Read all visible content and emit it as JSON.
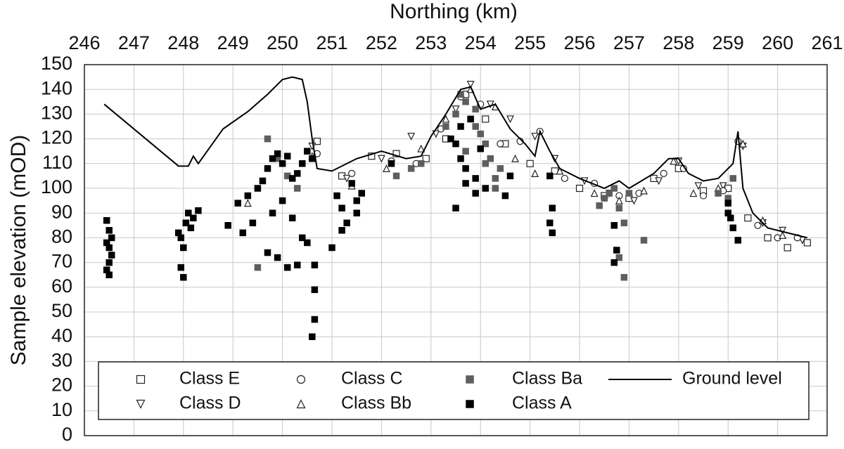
{
  "chart_data": {
    "type": "scatter",
    "x_label": "Northing (km)",
    "y_label": "Sample elevation (mOD)",
    "xlim": [
      246,
      261
    ],
    "xticks": [
      246,
      247,
      248,
      249,
      250,
      251,
      252,
      253,
      254,
      255,
      256,
      257,
      258,
      259,
      260,
      261
    ],
    "ylim": [
      0,
      150
    ],
    "yticks": [
      0,
      10,
      20,
      30,
      40,
      50,
      60,
      70,
      80,
      90,
      100,
      110,
      120,
      130,
      140,
      150
    ],
    "grid": true,
    "legend": "bottom",
    "series": [
      {
        "name": "Class E",
        "color": "#222222",
        "marker": "square-open",
        "x": [
          250.7,
          251.2,
          251.8,
          252.3,
          252.9,
          253.3,
          253.7,
          254.1,
          254.5,
          255.0,
          255.5,
          256.0,
          256.5,
          257.0,
          257.5,
          258.0,
          258.5,
          259.0,
          259.4,
          259.8,
          260.2,
          260.6
        ],
        "values": [
          119,
          105,
          113,
          114,
          112,
          120,
          138,
          128,
          118,
          110,
          107,
          100,
          97,
          96,
          104,
          108,
          99,
          100,
          88,
          80,
          76,
          78
        ]
      },
      {
        "name": "Class D",
        "color": "#222222",
        "marker": "triangle-down-open",
        "x": [
          250.6,
          251.3,
          252.0,
          252.6,
          253.1,
          253.5,
          253.8,
          254.2,
          254.6,
          255.1,
          255.5,
          256.1,
          256.6,
          257.1,
          257.6,
          258.0,
          258.4,
          258.9,
          259.3,
          259.7,
          260.1,
          260.5
        ],
        "values": [
          117,
          104,
          112,
          121,
          122,
          132,
          142,
          134,
          128,
          121,
          112,
          103,
          98,
          95,
          103,
          111,
          101,
          101,
          117,
          86,
          83,
          79
        ]
      },
      {
        "name": "Class C",
        "color": "#222222",
        "marker": "circle-open",
        "x": [
          250.7,
          251.4,
          252.2,
          252.7,
          253.2,
          253.6,
          254.0,
          254.4,
          254.8,
          255.2,
          255.7,
          256.3,
          256.8,
          257.2,
          257.7,
          258.1,
          258.5,
          258.9,
          259.2,
          259.6,
          260.0,
          260.4
        ],
        "values": [
          114,
          106,
          111,
          110,
          124,
          137,
          134,
          118,
          119,
          123,
          104,
          102,
          97,
          98,
          106,
          108,
          97,
          99,
          119,
          85,
          80,
          80
        ]
      },
      {
        "name": "Class Bb",
        "color": "#222222",
        "marker": "triangle-up-open",
        "x": [
          249.3,
          250.6,
          251.4,
          252.1,
          252.8,
          253.3,
          253.8,
          254.3,
          254.7,
          255.1,
          255.6,
          256.3,
          256.8,
          257.3,
          257.9,
          258.3,
          258.8,
          259.3,
          259.7,
          260.1
        ],
        "values": [
          94,
          113,
          101,
          108,
          116,
          128,
          140,
          133,
          112,
          106,
          107,
          98,
          95,
          99,
          111,
          98,
          100,
          118,
          87,
          81
        ]
      },
      {
        "name": "Class Ba",
        "color": "#5e5e5e",
        "marker": "square",
        "x": [
          249.5,
          249.7,
          249.9,
          250.1,
          250.3,
          252.3,
          252.6,
          252.8,
          253.3,
          253.5,
          253.6,
          253.7,
          253.8,
          253.9,
          254.0,
          254.1,
          254.2,
          254.3,
          254.4,
          253.7,
          253.9,
          254.1,
          254.3,
          256.4,
          256.5,
          256.6,
          256.7,
          256.8,
          256.9,
          257.0,
          256.8,
          256.9,
          257.3,
          258.8,
          259.0,
          259.1
        ],
        "values": [
          68,
          120,
          112,
          105,
          100,
          105,
          108,
          110,
          125,
          130,
          138,
          135,
          128,
          132,
          122,
          118,
          112,
          104,
          108,
          115,
          125,
          110,
          100,
          93,
          96,
          98,
          100,
          92,
          86,
          98,
          72,
          64,
          79,
          98,
          96,
          104
        ]
      },
      {
        "name": "Class A",
        "color": "#000000",
        "marker": "square",
        "x": [
          246.45,
          246.5,
          246.55,
          246.45,
          246.5,
          246.55,
          246.5,
          246.45,
          246.5,
          247.9,
          247.95,
          248.0,
          248.05,
          248.1,
          248.15,
          248.2,
          247.95,
          248.0,
          248.3,
          248.9,
          249.1,
          249.2,
          249.3,
          249.4,
          249.5,
          249.6,
          249.7,
          249.8,
          249.9,
          250.0,
          250.1,
          250.2,
          250.3,
          250.4,
          250.5,
          250.6,
          250.65,
          250.65,
          250.65,
          249.7,
          249.9,
          250.1,
          250.3,
          250.5,
          249.8,
          250.0,
          250.2,
          250.4,
          250.6,
          251.1,
          251.2,
          251.3,
          251.4,
          251.5,
          251.6,
          251.2,
          251.5,
          251.0,
          252.2,
          253.4,
          253.5,
          253.6,
          253.7,
          253.8,
          253.9,
          254.0,
          254.1,
          253.5,
          253.7,
          253.9,
          253.6,
          254.5,
          254.6,
          255.4,
          255.45,
          255.4,
          255.45,
          256.7,
          256.75,
          256.7,
          259.0,
          259.05,
          259.1,
          259.2,
          259.0
        ],
        "values": [
          87,
          83,
          80,
          78,
          76,
          73,
          70,
          67,
          65,
          82,
          80,
          76,
          86,
          90,
          84,
          88,
          68,
          64,
          91,
          85,
          94,
          82,
          97,
          86,
          100,
          103,
          108,
          112,
          114,
          110,
          113,
          104,
          106,
          110,
          115,
          112,
          69,
          59,
          47,
          74,
          72,
          68,
          69,
          78,
          90,
          95,
          88,
          80,
          40,
          97,
          92,
          86,
          102,
          95,
          98,
          83,
          90,
          76,
          110,
          120,
          118,
          112,
          102,
          128,
          104,
          116,
          100,
          92,
          108,
          98,
          125,
          97,
          105,
          105,
          92,
          86,
          82,
          85,
          75,
          70,
          94,
          88,
          84,
          79,
          90
        ]
      },
      {
        "name": "Ground level",
        "color": "#000000",
        "marker": "line",
        "x": [
          246.4,
          247.9,
          248.1,
          248.2,
          248.3,
          248.8,
          249.3,
          249.7,
          250.0,
          250.2,
          250.4,
          250.5,
          250.6,
          250.7,
          251.0,
          251.5,
          252.0,
          252.5,
          252.8,
          253.0,
          253.3,
          253.6,
          253.8,
          254.0,
          254.3,
          254.6,
          254.9,
          255.1,
          255.2,
          255.4,
          255.6,
          256.0,
          256.5,
          256.8,
          257.0,
          257.5,
          257.8,
          258.0,
          258.2,
          258.5,
          258.8,
          259.1,
          259.2,
          259.3,
          259.5,
          259.8,
          260.2,
          260.6
        ],
        "values": [
          134,
          109,
          109,
          113,
          110,
          124,
          131,
          138,
          144,
          145,
          144,
          135,
          120,
          108,
          107,
          112,
          115,
          112,
          113,
          121,
          130,
          140,
          141,
          132,
          134,
          124,
          118,
          113,
          123,
          115,
          108,
          104,
          100,
          103,
          100,
          106,
          112,
          112,
          106,
          103,
          104,
          110,
          123,
          100,
          90,
          84,
          82,
          80
        ]
      }
    ]
  }
}
